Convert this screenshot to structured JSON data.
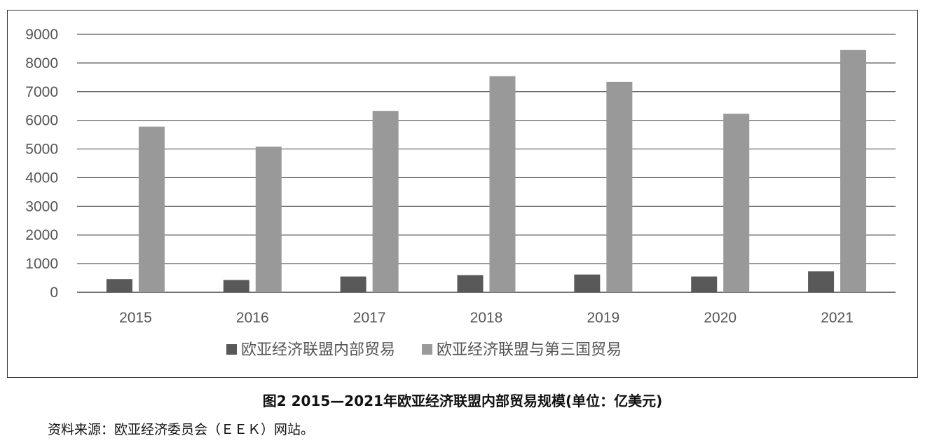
{
  "chart_data": {
    "type": "bar",
    "categories": [
      "2015",
      "2016",
      "2017",
      "2018",
      "2019",
      "2020",
      "2021"
    ],
    "series": [
      {
        "name": "欧亚经济联盟内部贸易",
        "values": [
          460,
          430,
          550,
          600,
          620,
          550,
          730
        ],
        "color": "#595959"
      },
      {
        "name": "欧亚经济联盟与第三国贸易",
        "values": [
          5780,
          5080,
          6330,
          7540,
          7340,
          6230,
          8460
        ],
        "color": "#999999"
      }
    ],
    "ylim": [
      0,
      9000
    ],
    "yticks": [
      0,
      1000,
      2000,
      3000,
      4000,
      5000,
      6000,
      7000,
      8000,
      9000
    ],
    "grid": true,
    "legend_position": "bottom"
  },
  "caption": "图2 2015—2021年欧亚经济联盟内部贸易规模(单位：亿美元)",
  "source_note": "资料来源：欧亚经济委员会（ＥＥＫ）网站。"
}
